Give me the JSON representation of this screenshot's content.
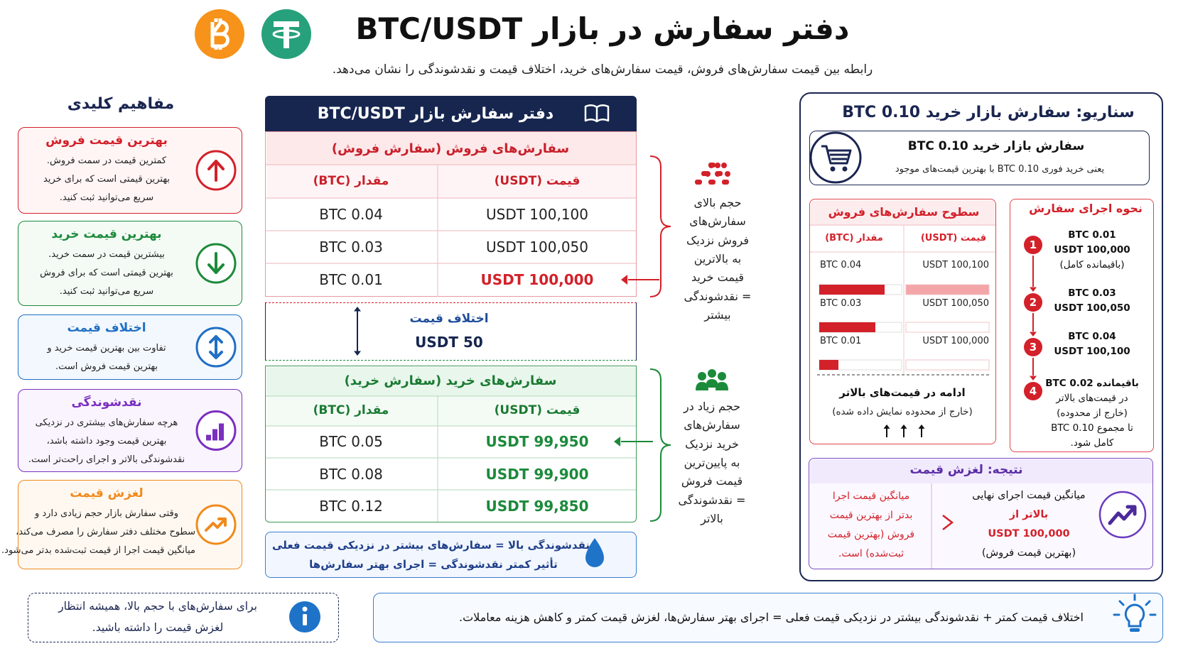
{
  "header": {
    "title": "دفتر سفارش در بازار BTC/USDT",
    "subtitle": "رابطه بین قیمت سفارش‌های فروش، قیمت سفارش‌های خرید، اختلاف قیمت و نقدشوندگی را نشان می‌دهد."
  },
  "concepts": {
    "title": "مفاهیم کلیدی",
    "items": [
      {
        "title": "بهترین قیمت فروش",
        "lines": [
          "کمترین قیمت در سمت فروش.",
          "بهترین قیمتی است که برای خرید",
          "سریع می‌توانید ثبت کنید."
        ]
      },
      {
        "title": "بهترین قیمت خرید",
        "lines": [
          "بیشترین قیمت در سمت خرید.",
          "بهترین قیمتی است که برای فروش",
          "سریع می‌توانید ثبت کنید."
        ]
      },
      {
        "title": "اختلاف قیمت",
        "lines": [
          "تفاوت بین بهترین قیمت خرید و",
          "بهترین قیمت فروش است."
        ]
      },
      {
        "title": "نقدشوندگی",
        "lines": [
          "هرچه سفارش‌های بیشتری در نزدیکی",
          "بهترین قیمت وجود داشته باشد،",
          "نقدشوندگی بالاتر و اجرای راحت‌تر است."
        ]
      },
      {
        "title": "لغزش قیمت",
        "lines": [
          "وقتی سفارش بازار حجم زیادی دارد و",
          "سطوح مختلف دفتر سفارش را مصرف می‌کند،",
          "میانگین قیمت اجرا از قیمت ثبت‌شده بدتر می‌شود."
        ]
      }
    ]
  },
  "book": {
    "title": "دفتر سفارش بازار BTC/USDT",
    "asks": {
      "title": "سفارش‌های فروش (سفارش فروش)",
      "headers": [
        "قیمت (USDT)",
        "مقدار (BTC)"
      ],
      "rows": [
        [
          "100,100 USDT",
          "0.04 BTC"
        ],
        [
          "100,050 USDT",
          "0.03 BTC"
        ],
        [
          "100,000 USDT",
          "0.01 BTC"
        ]
      ]
    },
    "spread": {
      "label": "اختلاف قیمت",
      "value": "50 USDT"
    },
    "bids": {
      "title": "سفارش‌های خرید (سفارش خرید)",
      "headers": [
        "قیمت (USDT)",
        "مقدار (BTC)"
      ],
      "rows": [
        [
          "99,950 USDT",
          "0.05 BTC"
        ],
        [
          "99,900 USDT",
          "0.08 BTC"
        ],
        [
          "99,850 USDT",
          "0.12 BTC"
        ]
      ]
    },
    "note": [
      "نقدشوندگی بالا = سفارش‌های بیشتر در نزدیکی قیمت فعلی",
      "تأثیر کمتر نقدشوندگی = اجرای بهتر سفارش‌ها"
    ]
  },
  "annotations": {
    "asks": [
      "حجم بالای",
      "سفارش‌های",
      "فروش نزدیک",
      "به بالاترین",
      "قیمت خرید",
      "= نقدشوندگی",
      "بیشتر"
    ],
    "bids": [
      "حجم زیاد در",
      "سفارش‌های",
      "خرید نزدیک",
      "به پایین‌ترین",
      "قیمت فروش",
      "= نقدشوندگی",
      "بالاتر"
    ]
  },
  "scenario": {
    "title": "سناریو: سفارش بازار خرید 0.10 BTC",
    "order": {
      "title": "سفارش بازار خرید 0.10 BTC",
      "text": "یعنی خرید فوری 0.10 BTC با بهترین قیمت‌های موجود"
    },
    "levels": {
      "title": "سطوح سفارش‌های فروش",
      "headers": [
        "قیمت (USDT)",
        "مقدار (BTC)"
      ],
      "rows": [
        [
          "100,100 USDT",
          "0.04 BTC"
        ],
        [
          "100,050 USDT",
          "0.03 BTC"
        ],
        [
          "100,000 USDT",
          "0.01 BTC"
        ]
      ],
      "more": [
        "ادامه در قیمت‌های بالاتر",
        "(خارج از محدوده نمایش داده شده)"
      ]
    },
    "execution": {
      "title": "نحوه اجرای سفارش",
      "steps": [
        {
          "number": "1",
          "lines": [
            "0.01 BTC",
            "100,000 USDT",
            "(باقیمانده کامل)"
          ]
        },
        {
          "number": "2",
          "lines": [
            "0.03 BTC",
            "100,050 USDT"
          ]
        },
        {
          "number": "3",
          "lines": [
            "0.04 BTC",
            "100,100 USDT"
          ]
        },
        {
          "number": "4",
          "lines": [
            "باقیمانده 0.02 BTC",
            "در قیمت‌های بالاتر",
            "(خارج از محدوده)",
            "تا مجموع 0.10 BTC",
            "کامل شود."
          ]
        }
      ]
    },
    "result": {
      "title": "نتیجه: لغزش قیمت",
      "average": [
        "میانگین قیمت اجرای نهایی",
        "بالاتر از",
        "100,000 USDT",
        "(بهترین قیمت فروش)"
      ],
      "worse": [
        "میانگین قیمت اجرا",
        "بدتر از بهترین قیمت",
        "فروش (بهترین قیمت",
        "ثبت‌شده) است."
      ]
    }
  },
  "footer": {
    "tip": [
      "برای سفارش‌های با حجم بالا، همیشه انتظار",
      "لغزش قیمت را داشته باشید."
    ],
    "summary": "اختلاف قیمت کمتر + نقدشوندگی بیشتر در نزدیکی قیمت فعلی = اجرای بهتر سفارش‌ها، لغزش قیمت کمتر و کاهش هزینه معاملات."
  }
}
